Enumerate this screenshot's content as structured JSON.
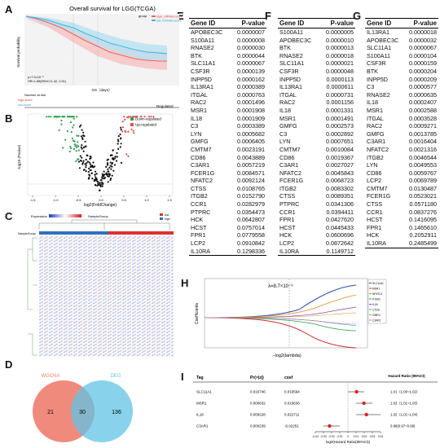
{
  "panels": {
    "A": {
      "label": "A",
      "title": "Overall survival for LGG(TCGA)",
      "legend_group": "group",
      "legend_high": "high_mRNAsi.score",
      "legend_low": "low_mRNAsi.score",
      "ylabel": "Survival probability",
      "xlabel": "OS（days）",
      "p_text": "p=7.5×10⁻⁹",
      "hr_text": "HR=1.89(95%CI:1.42, 2.51)",
      "risk_title": "Number at risk",
      "risk_high": "high-score",
      "risk_low": "low-score",
      "regulated": "Regulated"
    },
    "B": {
      "label": "B",
      "ylabel": "-log10 (Pvalue)",
      "xlabel": "log2(FoldChange)",
      "legend_down": "Down-regulated",
      "legend_up": "Up-regulated",
      "xticks": [
        "-1.5",
        "-1.0",
        "-0.5",
        "0.0",
        "0.5",
        "1.0",
        "1.5"
      ]
    },
    "C": {
      "label": "C",
      "legend_expression": "Expression",
      "legend_samplegroup": "SampleGroup",
      "legend_low": "low",
      "legend_high": "high",
      "row_label": "SampleGroup"
    },
    "D": {
      "label": "D",
      "set_left": "WGCNA",
      "set_right": "DEG",
      "left_only": "21",
      "both": "30",
      "right_only": "136"
    },
    "E": {
      "label": "E",
      "col1": "Gene ID",
      "col2": "P-value",
      "rows": [
        [
          "APOBEC3C",
          "0.0000007"
        ],
        [
          "S100A11",
          "0.0000008"
        ],
        [
          "RNASE2",
          "0.0000030"
        ],
        [
          "BTK",
          "0.0000044"
        ],
        [
          "SLC11A1",
          "0.0000067"
        ],
        [
          "CSF3R",
          "0.0000139"
        ],
        [
          "INPP5D",
          "0.0000162"
        ],
        [
          "IL13RA1",
          "0.0000389"
        ],
        [
          "ITGAL",
          "0.0000763"
        ],
        [
          "RAC2",
          "0.0001496"
        ],
        [
          "MSR1",
          "0.0001908"
        ],
        [
          "IL18",
          "0.0001909"
        ],
        [
          "C3",
          "0.0003389"
        ],
        [
          "LYN",
          "0.0005682"
        ],
        [
          "GMFG",
          "0.0006405"
        ],
        [
          "CMTM7",
          "0.0023191"
        ],
        [
          "CD86",
          "0.0043889"
        ],
        [
          "C3AR1",
          "0.0057219"
        ],
        [
          "FCER1G",
          "0.0084571"
        ],
        [
          "NFATC2",
          "0.0092124"
        ],
        [
          "CTSS",
          "0.0108765"
        ],
        [
          "ITGB2",
          "0.0152790"
        ],
        [
          "CCR1",
          "0.0282979"
        ],
        [
          "PTPRC",
          "0.0354473"
        ],
        [
          "HCK",
          "0.0642807"
        ],
        [
          "HCST",
          "0.0757014"
        ],
        [
          "FPR1",
          "0.0779558"
        ],
        [
          "LCP2",
          "0.0910842"
        ],
        [
          "IL10RA",
          "0.1298336"
        ]
      ]
    },
    "F": {
      "label": "F",
      "col1": "Gene ID",
      "col2": "P-value",
      "rows": [
        [
          "S100A11",
          "0.0000005"
        ],
        [
          "APOBEC3C",
          "0.0000010"
        ],
        [
          "BTK",
          "0.0000013"
        ],
        [
          "RNASE2",
          "0.0000018"
        ],
        [
          "SLC11A1",
          "0.0000021"
        ],
        [
          "CSF3R",
          "0.0000048"
        ],
        [
          "INPP5D",
          "0.0000113"
        ],
        [
          "IL13RA1",
          "0.0000611"
        ],
        [
          "ITGAL",
          "0.0000731"
        ],
        [
          "RAC2",
          "0.0001156"
        ],
        [
          "IL18",
          "0.0001331"
        ],
        [
          "MSR1",
          "0.0001491"
        ],
        [
          "GMFG",
          "0.0002573"
        ],
        [
          "C3",
          "0.0002892"
        ],
        [
          "LYN",
          "0.0007651"
        ],
        [
          "CMTM7",
          "0.0010084"
        ],
        [
          "CD86",
          "0.0019367"
        ],
        [
          "C3AR1",
          "0.0027027"
        ],
        [
          "NFATC2",
          "0.0045843"
        ],
        [
          "FCER1G",
          "0.0068723"
        ],
        [
          "ITGB2",
          "0.0083302"
        ],
        [
          "CTSS",
          "0.0089351"
        ],
        [
          "PTPRC",
          "0.0341306"
        ],
        [
          "CCR1",
          "0.0394411"
        ],
        [
          "FPR1",
          "0.0427620"
        ],
        [
          "HCST",
          "0.0445433"
        ],
        [
          "HCK",
          "0.0600696"
        ],
        [
          "LCP2",
          "0.0872642"
        ],
        [
          "IL10RA",
          "0.1149712"
        ]
      ]
    },
    "G": {
      "label": "G",
      "col1": "Gene ID",
      "col2": "P-value",
      "rows": [
        [
          "IL13RA1",
          "0.0000018"
        ],
        [
          "APOBEC3C",
          "0.0000032"
        ],
        [
          "SLC11A1",
          "0.0000067"
        ],
        [
          "S100A11",
          "0.0000104"
        ],
        [
          "CSF3R",
          "0.0000159"
        ],
        [
          "BTK",
          "0.0000204"
        ],
        [
          "INPP5D",
          "0.0000209"
        ],
        [
          "C3",
          "0.0000577"
        ],
        [
          "RNASE2",
          "0.0000635"
        ],
        [
          "IL18",
          "0.0002407"
        ],
        [
          "MSR1",
          "0.0002588"
        ],
        [
          "ITGAL",
          "0.0003528"
        ],
        [
          "RAC2",
          "0.0009271"
        ],
        [
          "GMFG",
          "0.0013785"
        ],
        [
          "C3AR1",
          "0.0016404"
        ],
        [
          "NFATC2",
          "0.0021316"
        ],
        [
          "ITGB2",
          "0.0046544"
        ],
        [
          "LYN",
          "0.0049553"
        ],
        [
          "CD86",
          "0.0059767"
        ],
        [
          "LCP2",
          "0.0069789"
        ],
        [
          "CMTM7",
          "0.0130487"
        ],
        [
          "FCER1G",
          "0.0523021"
        ],
        [
          "CTSS",
          "0.0571180"
        ],
        [
          "CCR1",
          "0.0837276"
        ],
        [
          "HCST",
          "0.1416095"
        ],
        [
          "FPR1",
          "0.1465610"
        ],
        [
          "HCK",
          "0.2052911"
        ],
        [
          "IL10RA",
          "0.2485499"
        ]
      ]
    },
    "H": {
      "label": "H",
      "ylabel": "Coefficients",
      "xlabel": "−log2(lambda)",
      "lambda_text": "λ=8.7×10⁻³",
      "legend": [
        "SLC11A1",
        "MSR1",
        "NFATC2",
        "ITGB2",
        "IL18",
        "CTSS",
        "GMFG",
        "C3AR1"
      ]
    },
    "I": {
      "label": "I",
      "col_tag": "Tag",
      "col_p": "Pr(>|z|)",
      "col_coef": "coef",
      "col_hr": "Hazard Ratio (95%CI)",
      "rows": [
        {
          "tag": "SLC11A1",
          "p": "0.016746",
          "coef": "0.010594",
          "hr": "1.01（1.00~1.02）"
        },
        {
          "tag": "MSR1",
          "p": "0.000632",
          "coef": "0.019636",
          "hr": "1.02（1.01~1.03）"
        },
        {
          "tag": "IL18",
          "p": "0.000228",
          "coef": "0.022711",
          "hr": "1.02（1.01~1.04）"
        },
        {
          "tag": "C3AR1",
          "p": "0.000239",
          "coef": "-0.02251",
          "hr": "0.98(0.97~0.99)"
        }
      ],
      "xaxis_label": "log2(Hazard Ratio(95%CI))",
      "xticks": [
        "-0.04",
        "-0.03",
        "-0.02",
        "-0.01",
        "0",
        "0.01",
        "0.02",
        "0.03",
        "0.04"
      ]
    }
  },
  "chart_data": [
    {
      "type": "scatter",
      "title": "",
      "xlabel": "log2(FoldChange)",
      "ylabel": "-log10 (Pvalue)",
      "xlim": [
        -1.5,
        1.5
      ],
      "series": [
        {
          "name": "Down-regulated",
          "color": "#2e9e4e"
        },
        {
          "name": "Up-regulated",
          "color": "#e05050"
        }
      ]
    },
    {
      "type": "scatter",
      "title": "",
      "xlabel": "log2(Hazard Ratio(95%CI))",
      "series": [
        {
          "categories": [
            "SLC11A1",
            "MSR1",
            "IL18",
            "C3AR1"
          ],
          "values": [
            0.0106,
            0.0196,
            0.0227,
            -0.0225
          ],
          "lower": [
            0.0,
            0.01,
            0.01,
            -0.03
          ],
          "upper": [
            0.02,
            0.03,
            0.04,
            -0.01
          ]
        }
      ],
      "xlim": [
        -0.04,
        0.04
      ]
    }
  ],
  "colors": {
    "high": "#f06060",
    "low": "#3fb6e3",
    "down": "#2e9e4e",
    "up": "#e05050",
    "venn_left": "#ee7d6f",
    "venn_right": "#60c3e6"
  }
}
